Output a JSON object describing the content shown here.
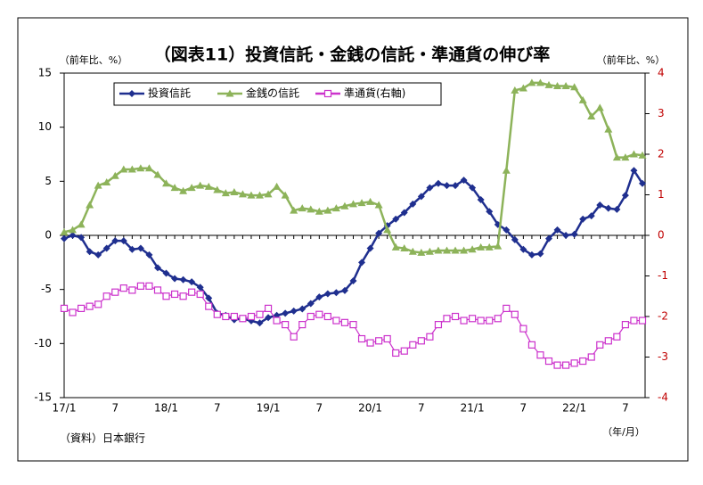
{
  "chart_data": {
    "type": "line",
    "title": "（図表11）投資信託・金銭の信託・準通貨の伸び率",
    "y_label": "（前年比、%）",
    "y2_label": "（前年比、%）",
    "x_label": "（年/月）",
    "source": "（資料）日本銀行",
    "categories": [
      "17/1",
      null,
      null,
      null,
      null,
      null,
      "7",
      null,
      null,
      null,
      null,
      null,
      "18/1",
      null,
      null,
      null,
      null,
      null,
      "7",
      null,
      null,
      null,
      null,
      null,
      "19/1",
      null,
      null,
      null,
      null,
      null,
      "7",
      null,
      null,
      null,
      null,
      null,
      "20/1",
      null,
      null,
      null,
      null,
      null,
      "7",
      null,
      null,
      null,
      null,
      null,
      "21/1",
      null,
      null,
      null,
      null,
      null,
      "7",
      null,
      null,
      null,
      null,
      null,
      "22/1",
      null,
      null,
      null,
      null,
      null,
      "7",
      null,
      null
    ],
    "ylim": [
      -15,
      15
    ],
    "yticks": [
      -15,
      -10,
      -5,
      0,
      5,
      10,
      15
    ],
    "y2lim": [
      -4,
      4
    ],
    "y2ticks": [
      -4,
      -3,
      -2,
      -1,
      0,
      1,
      2,
      3,
      4
    ],
    "series": [
      {
        "name": "投資信託",
        "color": "#1f2f8f",
        "marker": "diamond",
        "values": [
          -0.3,
          0,
          -0.2,
          -1.5,
          -1.8,
          -1.2,
          -0.5,
          -0.5,
          -1.3,
          -1.2,
          -1.8,
          -3.0,
          -3.5,
          -4.0,
          -4.1,
          -4.3,
          -4.8,
          -5.8,
          -7.2,
          -7.4,
          -7.8,
          -7.7,
          -7.9,
          -8.1,
          -7.6,
          -7.4,
          -7.2,
          -7.0,
          -6.8,
          -6.3,
          -5.7,
          -5.4,
          -5.3,
          -5.1,
          -4.2,
          -2.5,
          -1.2,
          0.2,
          0.9,
          1.5,
          2.1,
          2.9,
          3.6,
          4.4,
          4.8,
          4.6,
          4.6,
          5.1,
          4.4,
          3.3,
          2.2,
          1.0,
          0.5,
          -0.4,
          -1.3,
          -1.8,
          -1.7,
          -0.3,
          0.5,
          0.0,
          0.1,
          1.5,
          1.8,
          2.8,
          2.5,
          2.4,
          3.7,
          6.0,
          4.8
        ]
      },
      {
        "name": "金銭の信託",
        "color": "#8db35a",
        "marker": "triangle",
        "values": [
          0.3,
          0.5,
          1.0,
          2.8,
          4.6,
          4.9,
          5.5,
          6.1,
          6.1,
          6.2,
          6.2,
          5.6,
          4.8,
          4.4,
          4.1,
          4.4,
          4.6,
          4.5,
          4.2,
          3.9,
          4.0,
          3.8,
          3.7,
          3.7,
          3.8,
          4.5,
          3.7,
          2.3,
          2.5,
          2.4,
          2.2,
          2.3,
          2.5,
          2.7,
          2.9,
          3.0,
          3.1,
          2.8,
          0.5,
          -1.1,
          -1.2,
          -1.5,
          -1.6,
          -1.5,
          -1.4,
          -1.4,
          -1.4,
          -1.4,
          -1.3,
          -1.1,
          -1.1,
          -1.0,
          6.0,
          13.4,
          13.6,
          14.1,
          14.1,
          13.9,
          13.8,
          13.8,
          13.7,
          12.5,
          11.0,
          11.8,
          9.8,
          7.2,
          7.2,
          7.5,
          7.4
        ]
      },
      {
        "name": "準通貨(右軸)",
        "color": "#cc33cc",
        "marker": "square",
        "axis": "y2",
        "values": [
          -1.8,
          -1.9,
          -1.8,
          -1.75,
          -1.7,
          -1.5,
          -1.4,
          -1.3,
          -1.35,
          -1.25,
          -1.25,
          -1.35,
          -1.5,
          -1.45,
          -1.5,
          -1.4,
          -1.45,
          -1.75,
          -1.95,
          -2.0,
          -2.0,
          -2.05,
          -2.0,
          -1.95,
          -1.8,
          -2.1,
          -2.2,
          -2.5,
          -2.2,
          -2.0,
          -1.95,
          -2.0,
          -2.1,
          -2.15,
          -2.2,
          -2.55,
          -2.65,
          -2.6,
          -2.55,
          -2.9,
          -2.85,
          -2.7,
          -2.6,
          -2.5,
          -2.2,
          -2.05,
          -2.0,
          -2.1,
          -2.05,
          -2.1,
          -2.1,
          -2.05,
          -1.8,
          -1.95,
          -2.3,
          -2.7,
          -2.95,
          -3.1,
          -3.2,
          -3.2,
          -3.15,
          -3.1,
          -3.0,
          -2.7,
          -2.6,
          -2.5,
          -2.2,
          -2.1,
          -2.1
        ]
      }
    ]
  }
}
